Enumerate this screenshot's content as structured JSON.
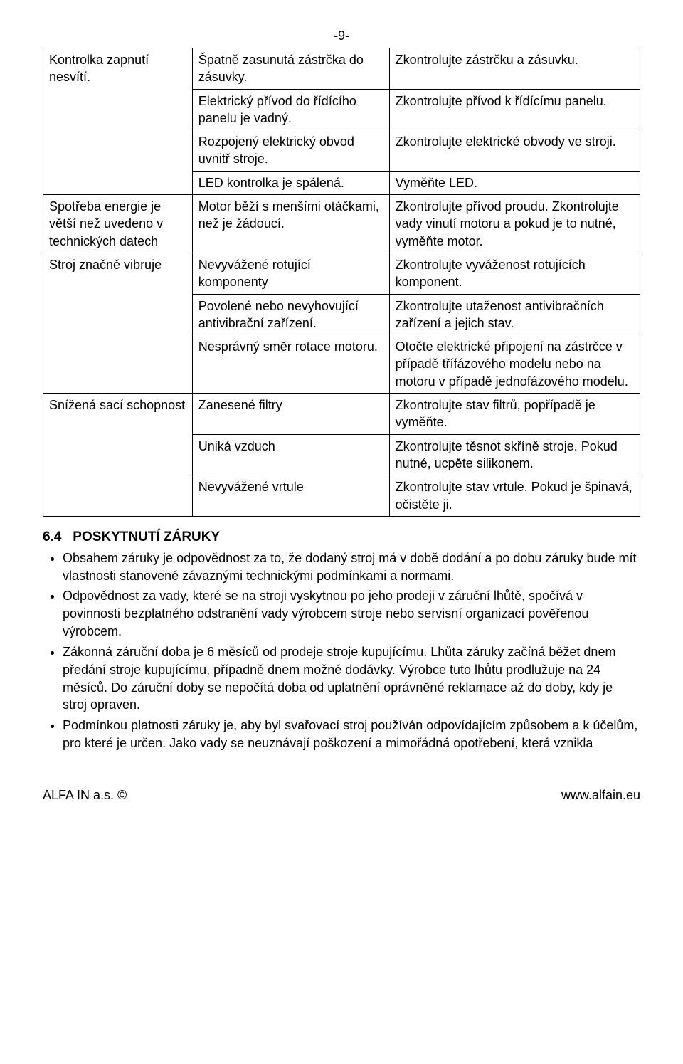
{
  "pageNumber": "-9-",
  "table": {
    "rows": [
      {
        "c1": "Kontrolka zapnutí nesvítí.",
        "c1rowspan": 4,
        "c2": "Špatně zasunutá zástrčka do zásuvky.",
        "c3": "Zkontrolujte zástrčku a zásuvku."
      },
      {
        "c2": "Elektrický přívod do řídícího panelu je vadný.",
        "c3": "Zkontrolujte přívod k řídícímu panelu."
      },
      {
        "c2": "Rozpojený elektrický obvod uvnitř stroje.",
        "c3": "Zkontrolujte elektrické obvody ve stroji."
      },
      {
        "c2": "LED kontrolka je spálená.",
        "c3": "Vyměňte LED."
      },
      {
        "c1": "Spotřeba energie je větší než uvedeno v technických datech",
        "c1rowspan": 1,
        "c2": "Motor běží s menšími otáčkami, než je žádoucí.",
        "c3": "Zkontrolujte přívod proudu. Zkontrolujte vady vinutí motoru a pokud je to nutné, vyměňte motor."
      },
      {
        "c1": "Stroj značně vibruje",
        "c1rowspan": 3,
        "c2": "Nevyvážené rotující komponenty",
        "c3": "Zkontrolujte vyváženost rotujících komponent."
      },
      {
        "c2": "Povolené nebo nevyhovující antivibrační zařízení.",
        "c3": "Zkontrolujte utaženost antivibračních zařízení a jejich stav."
      },
      {
        "c2": "Nesprávný směr rotace motoru.",
        "c3": "Otočte elektrické připojení na zástrčce v případě třífázového modelu nebo na motoru v případě jednofázového modelu."
      },
      {
        "c1": "Snížená sací schopnost",
        "c1rowspan": 3,
        "c2": "Zanesené filtry",
        "c3": "Zkontrolujte stav filtrů, popřípadě je vyměňte."
      },
      {
        "c2": "Uniká vzduch",
        "c3": "Zkontrolujte těsnot skříně stroje. Pokud nutné, ucpěte silikonem."
      },
      {
        "c2": "Nevyvážené vrtule",
        "c3": "Zkontrolujte stav vrtule. Pokud je špinavá, očistěte ji."
      }
    ]
  },
  "section": {
    "number": "6.4",
    "title": "POSKYTNUTÍ ZÁRUKY"
  },
  "bullets": [
    "Obsahem záruky je odpovědnost za to, že dodaný stroj má v době dodání a po dobu záruky bude mít vlastnosti stanovené závaznými technickými podmínkami a normami.",
    "Odpovědnost za vady, které se na stroji vyskytnou po jeho prodeji v záruční lhůtě, spočívá v povinnosti bezplatného odstranění vady výrobcem stroje nebo servisní organizací pověřenou výrobcem.",
    "Zákonná záruční doba je 6 měsíců od prodeje stroje kupujícímu. Lhůta záruky začíná běžet dnem předání stroje kupujícímu, případně dnem možné dodávky. Výrobce tuto lhůtu prodlužuje na 24 měsíců. Do záruční doby se nepočítá doba od uplatnění oprávněné reklamace až do doby, kdy je stroj opraven.",
    "Podmínkou platnosti záruky je, aby byl svařovací stroj používán odpovídajícím způsobem a k účelům, pro které je určen. Jako vady se neuznávají poškození a mimořádná opotřebení, která vznikla"
  ],
  "footer": {
    "left": "ALFA IN a.s. ©",
    "right": "www.alfain.eu"
  }
}
